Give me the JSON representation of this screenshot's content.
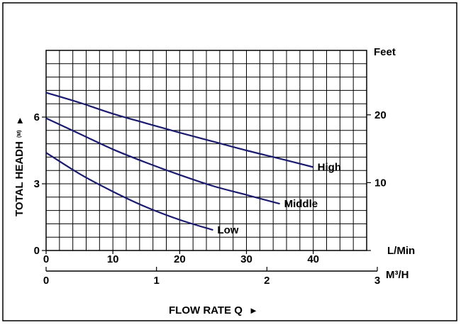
{
  "chart_data": {
    "type": "line",
    "xlabel": "FLOW RATE Q",
    "xlabel_arrow": "►",
    "ylabel": "TOTAL HEADH",
    "ylabel_subscript": "(M)",
    "ylabel_arrow": "►",
    "x_axis_lmin": {
      "unit": "L/Min",
      "ticks": [
        "0",
        "10",
        "20",
        "30",
        "40"
      ],
      "range": [
        0,
        48
      ]
    },
    "x_axis_m3h": {
      "unit": "M³/H",
      "ticks": [
        "0",
        "1",
        "2",
        "3"
      ],
      "range": [
        0,
        3
      ]
    },
    "y_axis_m": {
      "ticks": [
        "0",
        "3",
        "6"
      ],
      "range": [
        0,
        9
      ]
    },
    "y_axis_feet": {
      "unit": "Feet",
      "ticks": [
        "10",
        "20"
      ],
      "range": [
        0,
        29.5
      ]
    },
    "grid": true,
    "series": [
      {
        "name": "High",
        "x": [
          0,
          5,
          10,
          15,
          20,
          25,
          30,
          35,
          40
        ],
        "y": [
          7.1,
          6.65,
          6.15,
          5.72,
          5.3,
          4.9,
          4.5,
          4.13,
          3.75
        ],
        "color": "#1a1a6e"
      },
      {
        "name": "Middle",
        "x": [
          0,
          5,
          10,
          15,
          20,
          25,
          30,
          35
        ],
        "y": [
          5.95,
          5.25,
          4.55,
          3.95,
          3.4,
          2.9,
          2.5,
          2.1
        ],
        "color": "#1a1a6e"
      },
      {
        "name": "Low",
        "x": [
          0,
          5,
          10,
          15,
          20,
          25
        ],
        "y": [
          4.4,
          3.45,
          2.65,
          1.95,
          1.38,
          0.92
        ],
        "color": "#1a1a6e"
      }
    ]
  }
}
